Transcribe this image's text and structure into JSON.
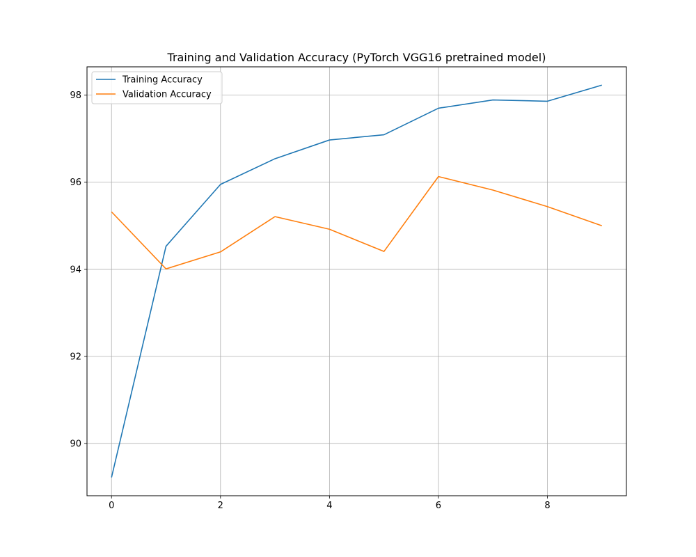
{
  "chart_data": {
    "type": "line",
    "title": "Training and Validation Accuracy (PyTorch VGG16 pretrained model)",
    "xlabel": "",
    "ylabel": "",
    "x": [
      0,
      1,
      2,
      3,
      4,
      5,
      6,
      7,
      8,
      9
    ],
    "xlim": [
      -0.45,
      9.45
    ],
    "ylim": [
      88.8,
      98.65
    ],
    "xticks": [
      0,
      2,
      4,
      6,
      8
    ],
    "yticks": [
      90,
      92,
      94,
      96,
      98
    ],
    "xtick_labels": [
      "0",
      "2",
      "4",
      "6",
      "8"
    ],
    "ytick_labels": [
      "90",
      "92",
      "94",
      "96",
      "98"
    ],
    "grid": true,
    "legend_position": "upper-left",
    "series": [
      {
        "name": "Training Accuracy",
        "color": "#1f77b4",
        "values": [
          89.22,
          94.53,
          95.95,
          96.54,
          96.97,
          97.09,
          97.7,
          97.89,
          97.86,
          98.23
        ]
      },
      {
        "name": "Validation Accuracy",
        "color": "#ff7f0e",
        "values": [
          95.32,
          94.01,
          94.4,
          95.21,
          94.92,
          94.41,
          96.13,
          95.82,
          95.44,
          95.0
        ]
      }
    ]
  }
}
